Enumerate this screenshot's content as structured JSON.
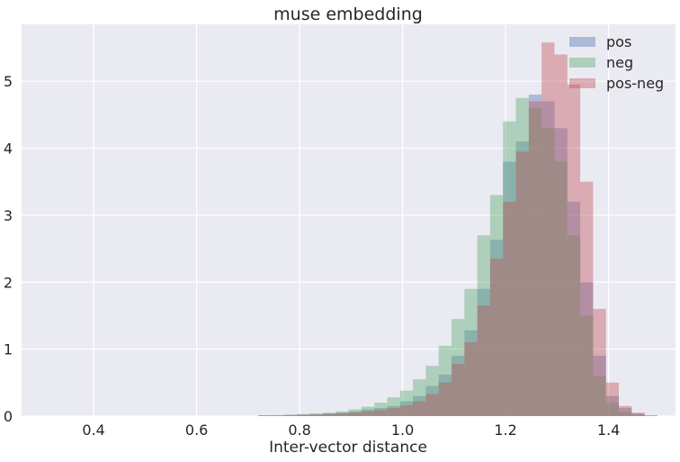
{
  "chart_data": {
    "type": "histogram",
    "title": "muse embedding",
    "xlabel": "Inter-vector distance",
    "ylabel": "",
    "xlim": [
      0.26,
      1.53
    ],
    "ylim": [
      0,
      5.85
    ],
    "xticks": [
      "0.4",
      "0.6",
      "0.8",
      "1.0",
      "1.2",
      "1.4"
    ],
    "xtick_values": [
      0.4,
      0.6,
      0.8,
      1.0,
      1.2,
      1.4
    ],
    "yticks": [
      "0",
      "1",
      "2",
      "3",
      "4",
      "5"
    ],
    "ytick_values": [
      0,
      1,
      2,
      3,
      4,
      5
    ],
    "grid": true,
    "legend_position": "top-right",
    "series": [
      {
        "name": "pos",
        "color": "#4c72b0",
        "bins": [
          [
            0.72,
            0.745,
            0.01
          ],
          [
            0.745,
            0.77,
            0.01
          ],
          [
            0.77,
            0.795,
            0.02
          ],
          [
            0.795,
            0.82,
            0.02
          ],
          [
            0.82,
            0.845,
            0.03
          ],
          [
            0.845,
            0.87,
            0.04
          ],
          [
            0.87,
            0.895,
            0.05
          ],
          [
            0.895,
            0.92,
            0.07
          ],
          [
            0.92,
            0.945,
            0.1
          ],
          [
            0.945,
            0.97,
            0.12
          ],
          [
            0.97,
            0.995,
            0.15
          ],
          [
            0.995,
            1.02,
            0.22
          ],
          [
            1.02,
            1.045,
            0.3
          ],
          [
            1.045,
            1.07,
            0.45
          ],
          [
            1.07,
            1.095,
            0.62
          ],
          [
            1.095,
            1.12,
            0.9
          ],
          [
            1.12,
            1.145,
            1.28
          ],
          [
            1.145,
            1.17,
            1.9
          ],
          [
            1.17,
            1.195,
            2.63
          ],
          [
            1.195,
            1.22,
            3.8
          ],
          [
            1.22,
            1.245,
            4.1
          ],
          [
            1.245,
            1.27,
            4.8
          ],
          [
            1.27,
            1.295,
            4.7
          ],
          [
            1.295,
            1.32,
            4.3
          ],
          [
            1.32,
            1.345,
            3.2
          ],
          [
            1.345,
            1.37,
            2.0
          ],
          [
            1.37,
            1.395,
            0.9
          ],
          [
            1.395,
            1.42,
            0.3
          ],
          [
            1.42,
            1.445,
            0.12
          ],
          [
            1.445,
            1.47,
            0.04
          ],
          [
            1.47,
            1.495,
            0.01
          ]
        ]
      },
      {
        "name": "neg",
        "color": "#55a868",
        "bins": [
          [
            0.72,
            0.745,
            0.01
          ],
          [
            0.745,
            0.77,
            0.01
          ],
          [
            0.77,
            0.795,
            0.02
          ],
          [
            0.795,
            0.82,
            0.03
          ],
          [
            0.82,
            0.845,
            0.04
          ],
          [
            0.845,
            0.87,
            0.05
          ],
          [
            0.87,
            0.895,
            0.07
          ],
          [
            0.895,
            0.92,
            0.1
          ],
          [
            0.92,
            0.945,
            0.14
          ],
          [
            0.945,
            0.97,
            0.2
          ],
          [
            0.97,
            0.995,
            0.28
          ],
          [
            0.995,
            1.02,
            0.38
          ],
          [
            1.02,
            1.045,
            0.55
          ],
          [
            1.045,
            1.07,
            0.75
          ],
          [
            1.07,
            1.095,
            1.05
          ],
          [
            1.095,
            1.12,
            1.45
          ],
          [
            1.12,
            1.145,
            1.9
          ],
          [
            1.145,
            1.17,
            2.7
          ],
          [
            1.17,
            1.195,
            3.3
          ],
          [
            1.195,
            1.22,
            4.4
          ],
          [
            1.22,
            1.245,
            4.75
          ],
          [
            1.245,
            1.27,
            4.6
          ],
          [
            1.27,
            1.295,
            4.3
          ],
          [
            1.295,
            1.32,
            3.8
          ],
          [
            1.32,
            1.345,
            2.7
          ],
          [
            1.345,
            1.37,
            1.5
          ],
          [
            1.37,
            1.395,
            0.6
          ],
          [
            1.395,
            1.42,
            0.2
          ],
          [
            1.42,
            1.445,
            0.06
          ],
          [
            1.445,
            1.47,
            0.02
          ]
        ]
      },
      {
        "name": "pos-neg",
        "color": "#c44e52",
        "bins": [
          [
            0.72,
            0.745,
            0.01
          ],
          [
            0.745,
            0.77,
            0.01
          ],
          [
            0.77,
            0.795,
            0.01
          ],
          [
            0.795,
            0.82,
            0.02
          ],
          [
            0.82,
            0.845,
            0.02
          ],
          [
            0.845,
            0.87,
            0.03
          ],
          [
            0.87,
            0.895,
            0.04
          ],
          [
            0.895,
            0.92,
            0.05
          ],
          [
            0.92,
            0.945,
            0.07
          ],
          [
            0.945,
            0.97,
            0.09
          ],
          [
            0.97,
            0.995,
            0.12
          ],
          [
            0.995,
            1.02,
            0.16
          ],
          [
            1.02,
            1.045,
            0.22
          ],
          [
            1.045,
            1.07,
            0.33
          ],
          [
            1.07,
            1.095,
            0.5
          ],
          [
            1.095,
            1.12,
            0.78
          ],
          [
            1.12,
            1.145,
            1.1
          ],
          [
            1.145,
            1.17,
            1.65
          ],
          [
            1.17,
            1.195,
            2.35
          ],
          [
            1.195,
            1.22,
            3.2
          ],
          [
            1.22,
            1.245,
            3.95
          ],
          [
            1.245,
            1.27,
            4.7
          ],
          [
            1.27,
            1.295,
            5.58
          ],
          [
            1.295,
            1.32,
            5.4
          ],
          [
            1.32,
            1.345,
            4.95
          ],
          [
            1.345,
            1.37,
            3.5
          ],
          [
            1.37,
            1.395,
            1.6
          ],
          [
            1.395,
            1.42,
            0.5
          ],
          [
            1.42,
            1.445,
            0.15
          ],
          [
            1.445,
            1.47,
            0.05
          ],
          [
            1.47,
            1.495,
            0.01
          ]
        ]
      }
    ]
  }
}
